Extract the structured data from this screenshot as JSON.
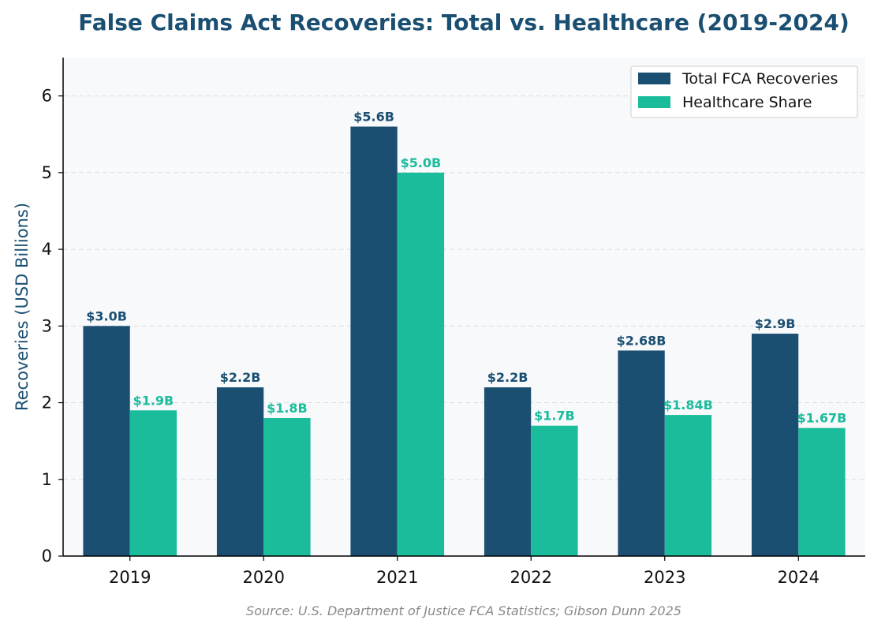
{
  "colors": {
    "total": "#1b4f72",
    "healthcare": "#1abc9c",
    "title": "#1b4f72",
    "plot_bg": "#f8f9fb",
    "grid": "#d9dde3",
    "source": "#8a8a8a"
  },
  "chart_data": {
    "type": "bar",
    "title": "False Claims Act Recoveries: Total vs. Healthcare (2019-2024)",
    "xlabel": "",
    "ylabel": "Recoveries (USD Billions)",
    "ylim": [
      0,
      6.5
    ],
    "yticks": [
      "0",
      "1",
      "2",
      "3",
      "4",
      "5",
      "6"
    ],
    "categories": [
      "2019",
      "2020",
      "2021",
      "2022",
      "2023",
      "2024"
    ],
    "series": [
      {
        "name": "Total FCA Recoveries",
        "values": [
          3.0,
          2.2,
          5.6,
          2.2,
          2.68,
          2.9
        ],
        "labels": [
          "$3.0B",
          "$2.2B",
          "$5.6B",
          "$2.2B",
          "$2.68B",
          "$2.9B"
        ]
      },
      {
        "name": "Healthcare Share",
        "values": [
          1.9,
          1.8,
          5.0,
          1.7,
          1.84,
          1.67
        ],
        "labels": [
          "$1.9B",
          "$1.8B",
          "$5.0B",
          "$1.7B",
          "$1.84B",
          "$1.67B"
        ]
      }
    ],
    "grid": true,
    "legend_position": "top-right",
    "source": "Source: U.S. Department of Justice FCA Statistics; Gibson Dunn 2025"
  }
}
